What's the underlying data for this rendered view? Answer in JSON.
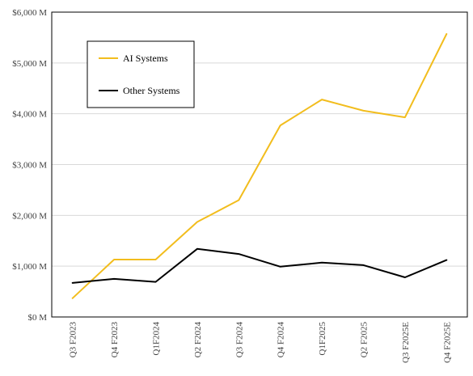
{
  "chart_data": {
    "type": "line",
    "title": "",
    "xlabel": "",
    "ylabel": "",
    "categories": [
      "Q3 F2023",
      "Q4 F2023",
      "Q1F2024",
      "Q2 F2024",
      "Q3 F2024",
      "Q4 F2024",
      "Q1F2025",
      "Q2 F2025",
      "Q3 F2025E",
      "Q4 F2025E"
    ],
    "ylim": [
      0,
      6000
    ],
    "y_ticks": [
      0,
      1000,
      2000,
      3000,
      4000,
      5000,
      6000
    ],
    "y_tick_labels": [
      "$0 M",
      "$1,000 M",
      "$2,000 M",
      "$3,000 M",
      "$4,000 M",
      "$5,000 M",
      "$6,000 M"
    ],
    "grid": "horizontal",
    "legend_position": "top-left",
    "series": [
      {
        "name": "AI Systems",
        "color": "#f2bd1d",
        "values": [
          370,
          1130,
          1130,
          1870,
          2300,
          3770,
          4280,
          4060,
          3930,
          5570
        ]
      },
      {
        "name": "Other Systems",
        "color": "#000000",
        "values": [
          670,
          750,
          690,
          1340,
          1240,
          990,
          1070,
          1020,
          780,
          1120
        ]
      }
    ]
  }
}
